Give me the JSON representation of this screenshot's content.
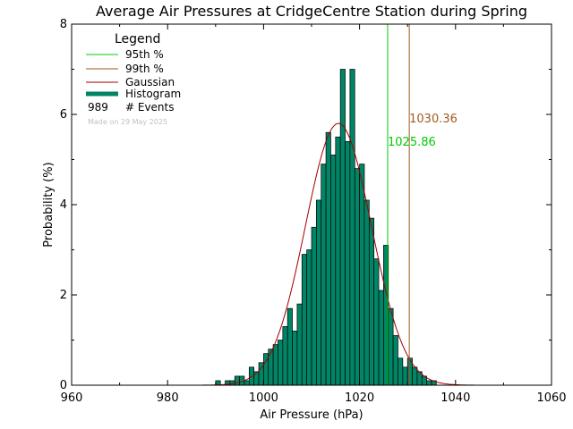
{
  "chart_data": {
    "type": "bar",
    "title": "Average Air Pressures at CridgeCentre Station during Spring",
    "xlabel": "Air Pressure (hPa)",
    "ylabel": "Probability (%)",
    "xlim": [
      960,
      1060
    ],
    "ylim": [
      0,
      8
    ],
    "x_ticks": [
      "960",
      "980",
      "1000",
      "1020",
      "1040",
      "1060"
    ],
    "y_ticks": [
      "0",
      "2",
      "4",
      "6",
      "8"
    ],
    "bin_width": 1,
    "bins": [
      {
        "x": 990,
        "y": 0.1
      },
      {
        "x": 991,
        "y": 0.0
      },
      {
        "x": 992,
        "y": 0.1
      },
      {
        "x": 993,
        "y": 0.1
      },
      {
        "x": 994,
        "y": 0.2
      },
      {
        "x": 995,
        "y": 0.2
      },
      {
        "x": 996,
        "y": 0.1
      },
      {
        "x": 997,
        "y": 0.4
      },
      {
        "x": 998,
        "y": 0.3
      },
      {
        "x": 999,
        "y": 0.5
      },
      {
        "x": 1000,
        "y": 0.7
      },
      {
        "x": 1001,
        "y": 0.8
      },
      {
        "x": 1002,
        "y": 0.9
      },
      {
        "x": 1003,
        "y": 1.0
      },
      {
        "x": 1004,
        "y": 1.3
      },
      {
        "x": 1005,
        "y": 1.7
      },
      {
        "x": 1006,
        "y": 1.2
      },
      {
        "x": 1007,
        "y": 1.8
      },
      {
        "x": 1008,
        "y": 2.9
      },
      {
        "x": 1009,
        "y": 3.0
      },
      {
        "x": 1010,
        "y": 3.5
      },
      {
        "x": 1011,
        "y": 4.1
      },
      {
        "x": 1012,
        "y": 4.9
      },
      {
        "x": 1013,
        "y": 5.6
      },
      {
        "x": 1014,
        "y": 5.1
      },
      {
        "x": 1015,
        "y": 5.5
      },
      {
        "x": 1016,
        "y": 7.0
      },
      {
        "x": 1017,
        "y": 5.4
      },
      {
        "x": 1018,
        "y": 7.0
      },
      {
        "x": 1019,
        "y": 4.8
      },
      {
        "x": 1020,
        "y": 4.9
      },
      {
        "x": 1021,
        "y": 4.1
      },
      {
        "x": 1022,
        "y": 3.7
      },
      {
        "x": 1023,
        "y": 2.8
      },
      {
        "x": 1024,
        "y": 2.1
      },
      {
        "x": 1025,
        "y": 3.1
      },
      {
        "x": 1026,
        "y": 1.7
      },
      {
        "x": 1027,
        "y": 1.1
      },
      {
        "x": 1028,
        "y": 0.6
      },
      {
        "x": 1029,
        "y": 0.4
      },
      {
        "x": 1030,
        "y": 0.6
      },
      {
        "x": 1031,
        "y": 0.4
      },
      {
        "x": 1032,
        "y": 0.3
      },
      {
        "x": 1033,
        "y": 0.2
      },
      {
        "x": 1034,
        "y": 0.1
      },
      {
        "x": 1035,
        "y": 0.1
      }
    ],
    "gaussian": {
      "mean": 1015.6,
      "sigma": 6.9,
      "peak": 5.8
    },
    "percentiles": [
      {
        "label": "95th %",
        "value": 1025.86,
        "text": "1025.86",
        "color": "#00cc00"
      },
      {
        "label": "99th %",
        "value": 1030.36,
        "text": "1030.36",
        "color": "#a05a1e"
      }
    ],
    "legend": {
      "title": "Legend",
      "items": [
        {
          "label": "95th %",
          "color": "#00cc00",
          "kind": "line"
        },
        {
          "label": "99th %",
          "color": "#a05a1e",
          "kind": "line"
        },
        {
          "label": "Gaussian",
          "color": "#a00000",
          "kind": "line"
        },
        {
          "label": "Histogram",
          "color": "#008566",
          "kind": "thick"
        }
      ],
      "events_count": "989",
      "events_label": "# Events",
      "stamp": "Made on 29 May 2025"
    },
    "colors": {
      "bar_fill": "#008566",
      "bar_edge": "#000000",
      "gaussian": "#a00000",
      "axis": "#000000"
    }
  }
}
